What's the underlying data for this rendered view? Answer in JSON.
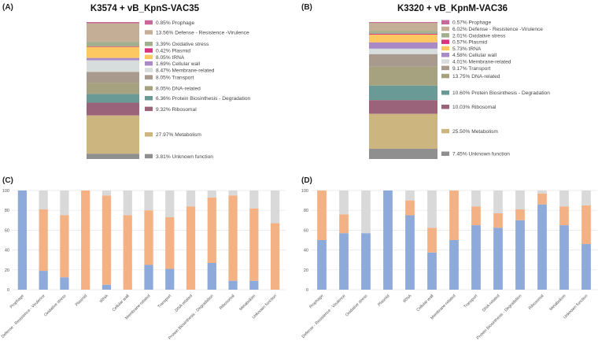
{
  "categories": [
    "Prophage",
    "Defense - Resistence - Virulence",
    "Oxidative stress",
    "Plasmid",
    "tRNA",
    "Cellular wall",
    "Membrane-related",
    "Transport",
    "DNA-related",
    "Protein Biosinthesis - Degradation",
    "Ribosomal",
    "Metabolism",
    "Unknown function"
  ],
  "category_colors": [
    "#c9679a",
    "#c4ae96",
    "#a3b08f",
    "#d6357f",
    "#fdc862",
    "#a98ac6",
    "#d7dcdc",
    "#a89a8c",
    "#a6a27f",
    "#6a9a96",
    "#9a6379",
    "#cdb57f",
    "#8f8f8f"
  ],
  "chart_data": [
    {
      "panel": "(A)",
      "type": "bar",
      "stacked": true,
      "title": "K3574 + vB_KpnS-VAC35",
      "legend_labels": [
        "Prophage",
        "Defense - Resistence -Virulence",
        "Oxidative stress",
        "Plasmid",
        "tRNA",
        "Cellular wall",
        "Membrane-related",
        "Transport",
        "DNA-related",
        "Protein Biosinthesis - Degradation",
        "Ribosomal",
        "Metabolism",
        "Unknown function"
      ],
      "values": [
        0.85,
        13.56,
        3.39,
        0.42,
        8.05,
        1.69,
        8.47,
        8.05,
        8.05,
        6.36,
        9.32,
        27.97,
        3.81
      ],
      "value_labels": [
        "0.85%",
        "13.56%",
        "3.39%",
        "0.42%",
        "8.05%",
        "1.69%",
        "8.47%",
        "8.05%",
        "8.05%",
        "6.36%",
        "9.32%",
        "27.97%",
        "3.81%"
      ]
    },
    {
      "panel": "(B)",
      "type": "bar",
      "stacked": true,
      "title": "K3320 + vB_KpnM-VAC36",
      "legend_labels": [
        "Prophage",
        "Defense - Resistence -Virulence",
        "Oxidative stress",
        "Plasmid",
        "tRNA",
        "Cellular wall",
        "Membrane-related",
        "Transport",
        "DNA-related",
        "Protein Biosinthesis - Degradation",
        "Ribosomal",
        "Metabolism",
        "Unknown function"
      ],
      "values": [
        0.57,
        6.02,
        2.01,
        0.57,
        5.73,
        4.58,
        4.01,
        9.17,
        13.75,
        10.6,
        10.03,
        25.5,
        7.45
      ],
      "value_labels": [
        "0.57%",
        "6.02%",
        "2.01%",
        "0.57%",
        "5.73%",
        "4.58%",
        "4.01%",
        "9.17%",
        "13.75%",
        "10.60%",
        "10.03%",
        "25.50%",
        "7.45%"
      ]
    },
    {
      "panel": "(C)",
      "type": "bar",
      "stacked": true,
      "ylim": [
        0,
        100
      ],
      "yticks": [
        "0",
        "20",
        "40",
        "60",
        "80",
        "100"
      ],
      "grid": true,
      "series_colors": [
        "#8eaadb",
        "#f4b183",
        "#d9d9d9"
      ],
      "series": [
        {
          "name": "blue",
          "values": [
            100,
            19,
            12.5,
            0,
            5,
            0,
            25,
            21,
            0,
            27,
            9,
            9,
            0
          ]
        },
        {
          "name": "orange",
          "values": [
            0,
            62,
            62.5,
            100,
            90,
            75,
            55,
            52,
            84,
            66,
            86,
            73,
            67
          ]
        },
        {
          "name": "gray",
          "values": [
            0,
            19,
            25,
            0,
            5,
            25,
            20,
            27,
            16,
            7,
            5,
            18,
            33
          ]
        }
      ]
    },
    {
      "panel": "(D)",
      "type": "bar",
      "stacked": true,
      "ylim": [
        0,
        100
      ],
      "yticks": [
        "0",
        "20",
        "40",
        "60",
        "80",
        "100"
      ],
      "grid": true,
      "series_colors": [
        "#8eaadb",
        "#f4b183",
        "#d9d9d9"
      ],
      "series": [
        {
          "name": "blue",
          "values": [
            50,
            57,
            57,
            100,
            75,
            37.5,
            50,
            65,
            62.5,
            70,
            86,
            65,
            46
          ]
        },
        {
          "name": "orange",
          "values": [
            50,
            19,
            0,
            0,
            15,
            25,
            50,
            19,
            14.5,
            11,
            11,
            19,
            39
          ]
        },
        {
          "name": "gray",
          "values": [
            0,
            24,
            43,
            0,
            10,
            37.5,
            0,
            16,
            23,
            19,
            3,
            16,
            15
          ]
        }
      ]
    }
  ]
}
